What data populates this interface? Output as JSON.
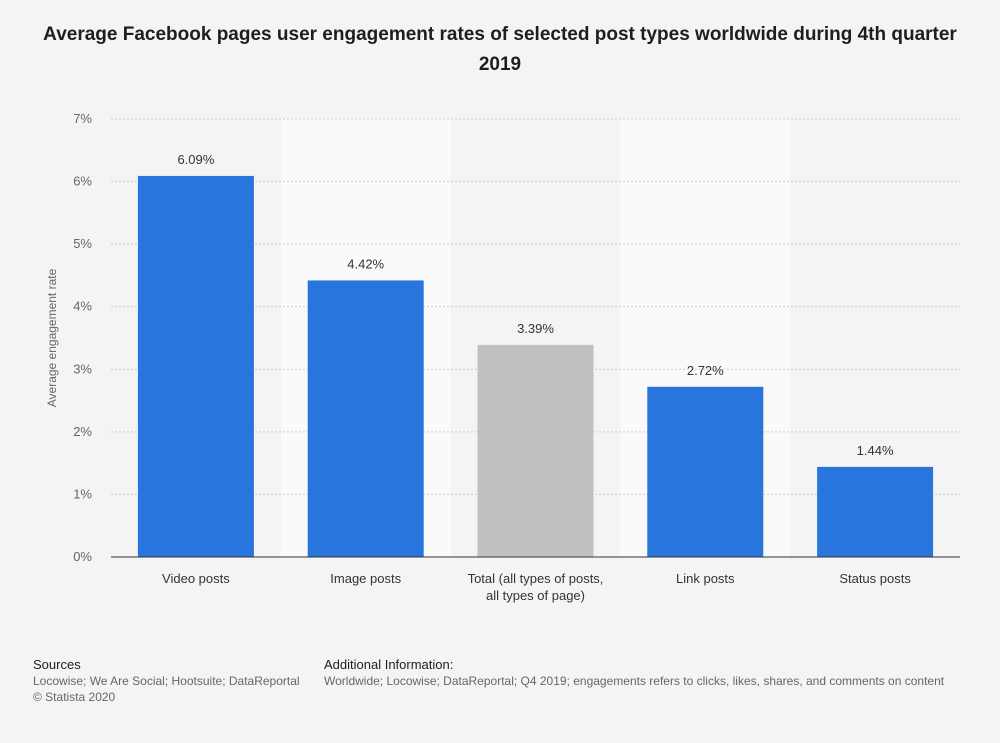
{
  "chart_data": {
    "type": "bar",
    "title": "Average Facebook pages user engagement rates of selected post types worldwide during 4th quarter 2019",
    "ylabel": "Average engagement rate",
    "xlabel": "",
    "ylim": [
      0,
      7
    ],
    "yticks": [
      "0%",
      "1%",
      "2%",
      "3%",
      "4%",
      "5%",
      "6%",
      "7%"
    ],
    "categories": [
      [
        "Video posts"
      ],
      [
        "Image posts"
      ],
      [
        "Total (all types of posts,",
        "all types of page)"
      ],
      [
        "Link posts"
      ],
      [
        "Status posts"
      ]
    ],
    "values": [
      6.09,
      4.42,
      3.39,
      2.72,
      1.44
    ],
    "value_labels": [
      "6.09%",
      "4.42%",
      "3.39%",
      "2.72%",
      "1.44%"
    ],
    "highlight_index": 2,
    "grid": true,
    "colors": {
      "bar": "#2775dd",
      "highlight": "#c0c0c0",
      "band": "#fafafa",
      "background": "#f4f4f4",
      "grid": "#cccccc"
    }
  },
  "footer": {
    "sources_head": "Sources",
    "sources_text": "Locowise; We Are Social; Hootsuite; DataReportal",
    "copyright": "© Statista 2020",
    "info_head": "Additional Information:",
    "info_text": "Worldwide; Locowise; DataReportal; Q4 2019; engagements refers to clicks, likes, shares, and comments on content"
  }
}
